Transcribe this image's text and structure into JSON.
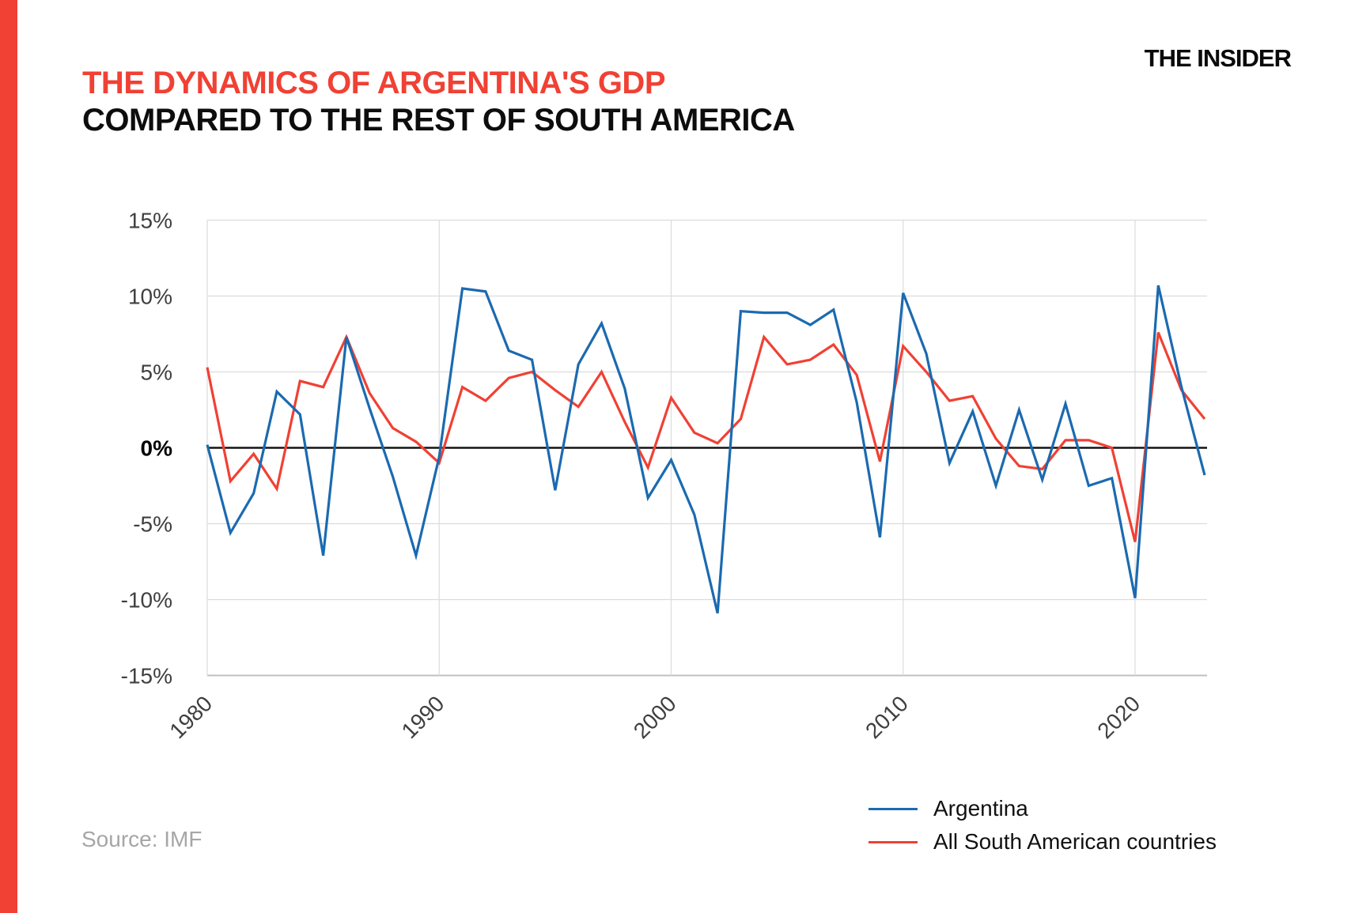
{
  "brand": {
    "logo_text": "THE INSIDER"
  },
  "title": {
    "line1": "THE DYNAMICS OF ARGENTINA'S GDP",
    "line2": "COMPARED TO THE REST OF SOUTH AMERICA"
  },
  "source_text": "Source: IMF",
  "colors": {
    "accent_red": "#F04134",
    "argentina_blue": "#1B6AB0",
    "grid_gray": "#dcdcdc",
    "axis_gray": "#c0c0c0",
    "zero_line": "#141414",
    "tick_text": "#3f3f3f"
  },
  "legend": [
    {
      "label": "Argentina",
      "color": "#1B6AB0"
    },
    {
      "label": "All South American countries",
      "color": "#F04134"
    }
  ],
  "chart_data": {
    "type": "line",
    "title": "The dynamics of Argentina's GDP compared to the rest of South America",
    "xlabel": "",
    "ylabel": "",
    "x": [
      1980,
      1981,
      1982,
      1983,
      1984,
      1985,
      1986,
      1987,
      1988,
      1989,
      1990,
      1991,
      1992,
      1993,
      1994,
      1995,
      1996,
      1997,
      1998,
      1999,
      2000,
      2001,
      2002,
      2003,
      2004,
      2005,
      2006,
      2007,
      2008,
      2009,
      2010,
      2011,
      2012,
      2013,
      2014,
      2015,
      2016,
      2017,
      2018,
      2019,
      2020,
      2021,
      2022,
      2023
    ],
    "series": [
      {
        "name": "Argentina",
        "color": "#1B6AB0",
        "values": [
          0.2,
          -5.6,
          -3.0,
          3.7,
          2.2,
          -7.1,
          7.3,
          2.6,
          -1.9,
          -7.1,
          -0.6,
          10.5,
          10.3,
          6.4,
          5.8,
          -2.8,
          5.5,
          8.2,
          3.9,
          -3.3,
          -0.8,
          -4.4,
          -10.9,
          9.0,
          8.9,
          8.9,
          8.1,
          9.1,
          3.0,
          -5.9,
          10.2,
          6.2,
          -1.0,
          2.4,
          -2.5,
          2.5,
          -2.1,
          2.9,
          -2.5,
          -2.0,
          -9.9,
          10.7,
          4.0,
          -1.8
        ]
      },
      {
        "name": "All South American countries",
        "color": "#F04134",
        "values": [
          5.3,
          -2.2,
          -0.4,
          -2.7,
          4.4,
          4.0,
          7.3,
          3.6,
          1.3,
          0.4,
          -1.0,
          4.0,
          3.1,
          4.6,
          5.0,
          3.8,
          2.7,
          5.0,
          1.7,
          -1.3,
          3.3,
          1.0,
          0.3,
          1.9,
          7.3,
          5.5,
          5.8,
          6.8,
          4.8,
          -0.9,
          6.7,
          5.0,
          3.1,
          3.4,
          0.6,
          -1.2,
          -1.4,
          0.5,
          0.5,
          0.0,
          -6.2,
          7.6,
          3.8,
          1.9
        ]
      }
    ],
    "xlim": [
      1980,
      2023
    ],
    "ylim": [
      -15,
      15
    ],
    "grid": true,
    "legend_position": "bottom-right",
    "yticks": [
      {
        "v": 15,
        "label": "15%"
      },
      {
        "v": 10,
        "label": "10%"
      },
      {
        "v": 5,
        "label": "5%"
      },
      {
        "v": 0,
        "label": "0%"
      },
      {
        "v": -5,
        "label": "-5%"
      },
      {
        "v": -10,
        "label": "-10%"
      },
      {
        "v": -15,
        "label": "-15%"
      }
    ],
    "xticks": [
      {
        "v": 1980,
        "label": "1980"
      },
      {
        "v": 1990,
        "label": "1990"
      },
      {
        "v": 2000,
        "label": "2000"
      },
      {
        "v": 2010,
        "label": "2010"
      },
      {
        "v": 2020,
        "label": "2020"
      }
    ]
  }
}
